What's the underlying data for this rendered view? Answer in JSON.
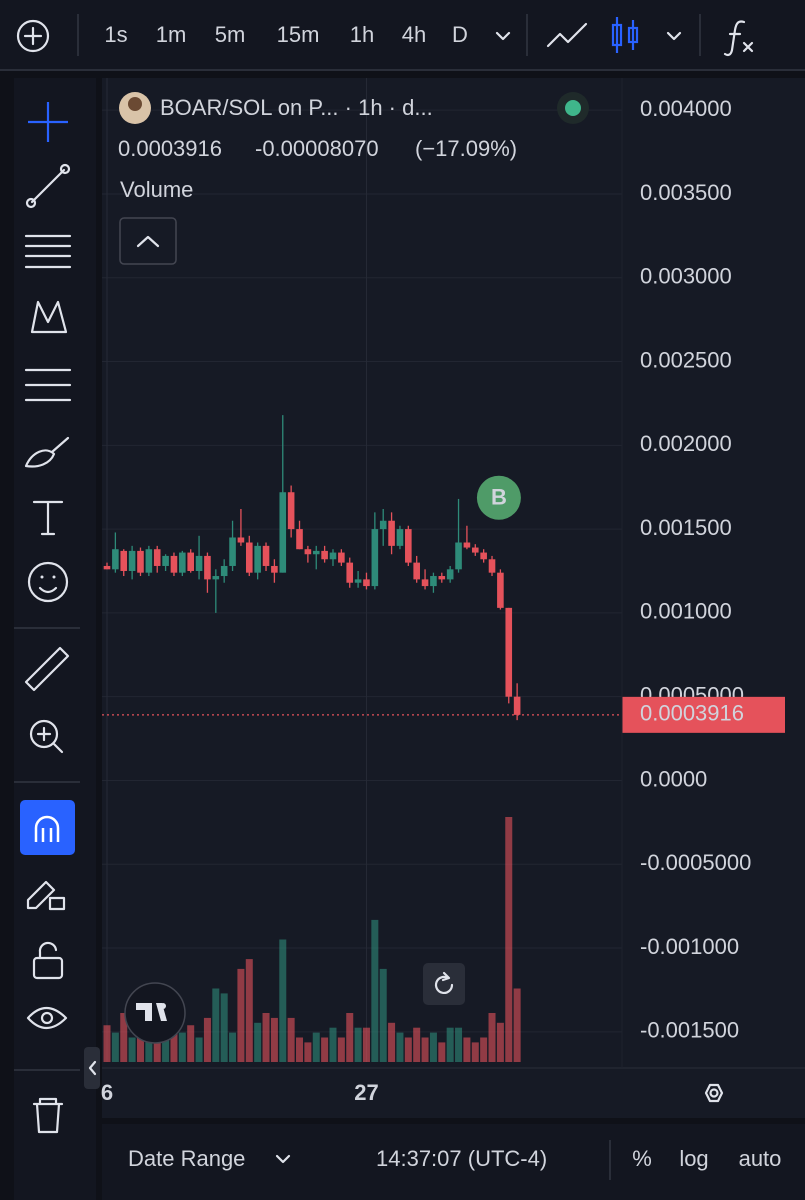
{
  "toolbar": {
    "intervals": [
      "1s",
      "1m",
      "5m",
      "15m",
      "1h",
      "4h",
      "D"
    ],
    "active_interval": "1h"
  },
  "chart_data": {
    "type": "candlestick",
    "title": "BOAR/SOL on P...  · 1h · d...",
    "change": "-0.00008070",
    "change_pct": "(−17.09%)",
    "volume_label": "Volume",
    "last_price": 0.0003916,
    "up_color": "#2e8b79",
    "down_color": "#e5525b",
    "marker": {
      "label": "B",
      "index": 43,
      "color": "#4f9b68"
    },
    "categories": [
      "6",
      null,
      null,
      null,
      null,
      null,
      null,
      null,
      null,
      null,
      null,
      null,
      null,
      null,
      null,
      null,
      null,
      null,
      null,
      null,
      null,
      null,
      null,
      null,
      null,
      null,
      null,
      null,
      null,
      null,
      null,
      "27",
      null,
      null,
      null,
      null,
      null,
      null,
      null,
      null,
      null,
      null,
      null,
      null,
      null,
      null,
      null,
      null,
      null,
      null
    ],
    "open": [
      0.00128,
      0.00126,
      0.00137,
      0.00125,
      0.00137,
      0.00124,
      0.00138,
      0.00128,
      0.00134,
      0.00124,
      0.00136,
      0.00125,
      0.00134,
      0.0012,
      0.00122,
      0.00128,
      0.00145,
      0.00142,
      0.00124,
      0.0014,
      0.00128,
      0.00124,
      0.00172,
      0.0015,
      0.00138,
      0.00135,
      0.00137,
      0.00132,
      0.00136,
      0.0013,
      0.00118,
      0.0012,
      0.00116,
      0.0015,
      0.00155,
      0.0014,
      0.0015,
      0.0013,
      0.0012,
      0.00116,
      0.00122,
      0.0012,
      0.00126,
      0.00142,
      0.00139,
      0.00136,
      0.00132,
      0.00124,
      0.00103,
      0.0005
    ],
    "high": [
      0.0013,
      0.00148,
      0.00138,
      0.0014,
      0.00139,
      0.0014,
      0.0014,
      0.00135,
      0.00136,
      0.00137,
      0.00138,
      0.00146,
      0.00136,
      0.00126,
      0.00132,
      0.00155,
      0.00162,
      0.00146,
      0.00142,
      0.00142,
      0.00132,
      0.00218,
      0.00176,
      0.00155,
      0.0014,
      0.0014,
      0.0014,
      0.00138,
      0.00138,
      0.00133,
      0.00125,
      0.00124,
      0.0016,
      0.00162,
      0.0016,
      0.00152,
      0.00152,
      0.00134,
      0.00126,
      0.00124,
      0.00124,
      0.00128,
      0.00168,
      0.00152,
      0.00141,
      0.00138,
      0.00134,
      0.00126,
      0.00103,
      0.00058
    ],
    "low": [
      0.00126,
      0.00124,
      0.00122,
      0.0012,
      0.00122,
      0.00122,
      0.00124,
      0.00125,
      0.00122,
      0.00122,
      0.00124,
      0.0012,
      0.00112,
      0.001,
      0.00118,
      0.00125,
      0.0014,
      0.00122,
      0.0012,
      0.00125,
      0.00118,
      0.00124,
      0.00145,
      0.00138,
      0.0013,
      0.00126,
      0.0013,
      0.00128,
      0.00128,
      0.00115,
      0.00115,
      0.00114,
      0.00114,
      0.0014,
      0.00135,
      0.00138,
      0.00128,
      0.00118,
      0.00114,
      0.00112,
      0.00118,
      0.00118,
      0.00124,
      0.00138,
      0.00134,
      0.0013,
      0.00122,
      0.00102,
      0.00046,
      0.00036
    ],
    "close": [
      0.00126,
      0.00138,
      0.00125,
      0.00137,
      0.00124,
      0.00138,
      0.00128,
      0.00134,
      0.00124,
      0.00136,
      0.00125,
      0.00134,
      0.0012,
      0.00122,
      0.00128,
      0.00145,
      0.00142,
      0.00124,
      0.0014,
      0.00128,
      0.00124,
      0.00172,
      0.0015,
      0.00138,
      0.00135,
      0.00137,
      0.00132,
      0.00136,
      0.0013,
      0.00118,
      0.0012,
      0.00116,
      0.0015,
      0.00155,
      0.0014,
      0.0015,
      0.0013,
      0.0012,
      0.00116,
      0.00122,
      0.0012,
      0.00126,
      0.00142,
      0.00139,
      0.00136,
      0.00132,
      0.00124,
      0.00103,
      0.0005,
      0.0003916
    ],
    "volume": [
      15,
      12,
      20,
      10,
      14,
      8,
      16,
      10,
      18,
      12,
      15,
      10,
      18,
      30,
      28,
      12,
      38,
      42,
      16,
      20,
      18,
      50,
      18,
      10,
      8,
      12,
      10,
      14,
      10,
      20,
      14,
      14,
      58,
      38,
      16,
      12,
      10,
      14,
      10,
      12,
      8,
      14,
      14,
      10,
      8,
      10,
      20,
      16,
      100,
      30
    ],
    "ylim": [
      -0.00168,
      0.00418
    ],
    "yticks": [
      {
        "value": 0.004,
        "label": "0.004000"
      },
      {
        "value": 0.0035,
        "label": "0.003500"
      },
      {
        "value": 0.003,
        "label": "0.003000"
      },
      {
        "value": 0.0025,
        "label": "0.002500"
      },
      {
        "value": 0.002,
        "label": "0.002000"
      },
      {
        "value": 0.0015,
        "label": "0.001500"
      },
      {
        "value": 0.001,
        "label": "0.001000"
      },
      {
        "value": 0.0005,
        "label": "0.0005000"
      },
      {
        "value": 0,
        "label": "0.0000"
      },
      {
        "value": -0.0005,
        "label": "-0.0005000"
      },
      {
        "value": -0.001,
        "label": "-0.001000"
      },
      {
        "value": -0.0015,
        "label": "-0.001500"
      }
    ],
    "grid": true,
    "log_scale": false
  },
  "footer": {
    "date_range": "Date Range",
    "time": "14:37:07 (UTC-4)",
    "options": [
      "%",
      "log",
      "auto"
    ]
  }
}
